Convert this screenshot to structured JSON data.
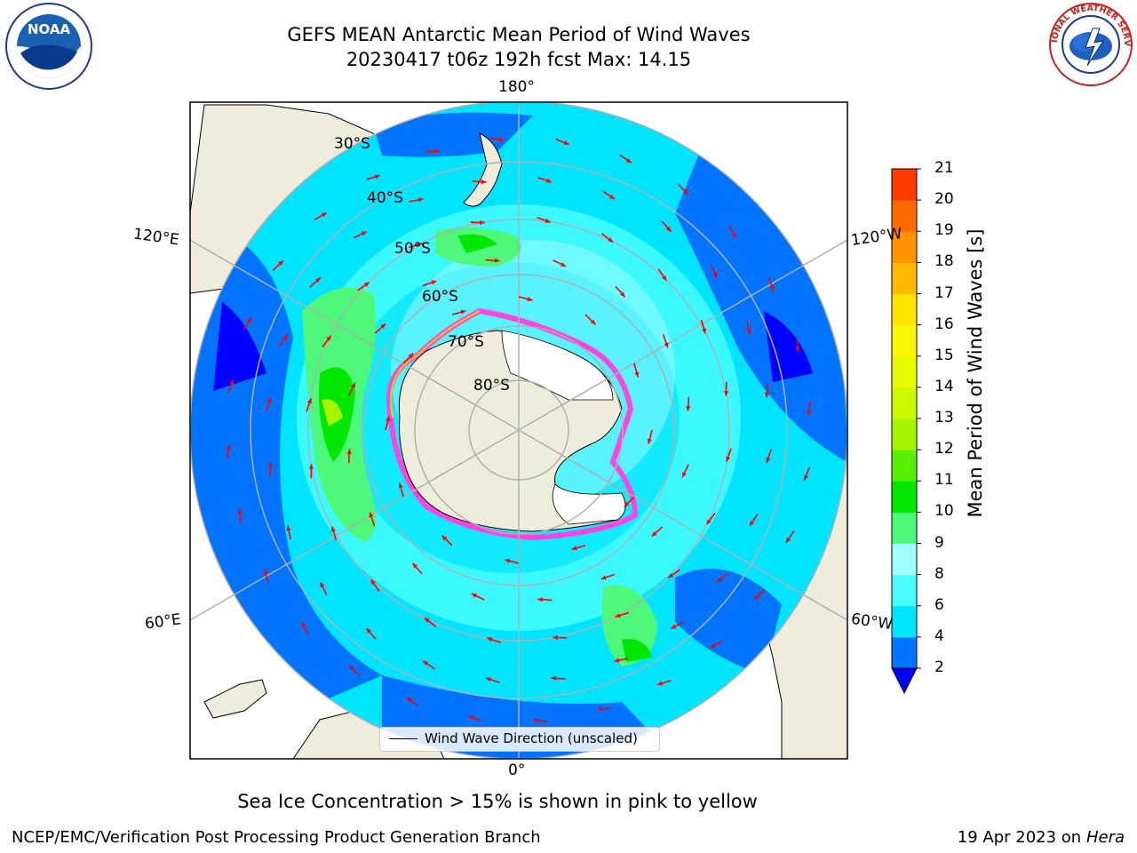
{
  "title": {
    "line1": "GEFS MEAN Antarctic Mean Period of Wind Waves",
    "line2": "20230417 t06z 192h fcst   Max: 14.15"
  },
  "logos": {
    "left": "NOAA",
    "right": "NATIONAL WEATHER SERVICE"
  },
  "map": {
    "projection": "south-polar-stereographic",
    "longitude_labels": {
      "top": "180°",
      "bottom": "0°",
      "left_upper": "120°E",
      "left_lower": "60°E",
      "right_upper": "120°W",
      "right_lower": "60°W"
    },
    "latitude_labels": [
      "30°S",
      "40°S",
      "50°S",
      "60°S",
      "70°S",
      "80°S"
    ],
    "colors": {
      "land": "#efecdc",
      "ice": "#ffffff",
      "arrows": "#ff0000",
      "graticule": "#b0b0b0"
    },
    "legend_label": "Wind Wave Direction (unscaled)"
  },
  "colorbar": {
    "title": "Mean Period of Wind Waves [s]",
    "ticks": [
      "2",
      "4",
      "6",
      "8",
      "9",
      "10",
      "11",
      "12",
      "13",
      "14",
      "15",
      "16",
      "17",
      "18",
      "19",
      "20",
      "21"
    ],
    "colors": [
      "#0073ff",
      "#00e4ff",
      "#4bfcff",
      "#a0fcff",
      "#4df87a",
      "#00e800",
      "#55f000",
      "#a6f500",
      "#ccf800",
      "#e8fb00",
      "#f8f700",
      "#ffe400",
      "#ffb900",
      "#ff9200",
      "#ff6a00",
      "#ff3a00",
      "#ff0000",
      "#ff0000"
    ],
    "extend_color": "#0000ff"
  },
  "note": "Sea Ice Concentration > 15% is shown in pink to yellow",
  "footer": {
    "left": "NCEP/EMC/Verification Post Processing Product Generation Branch",
    "right_date": "19 Apr 2023 on ",
    "right_host": "Hera"
  }
}
